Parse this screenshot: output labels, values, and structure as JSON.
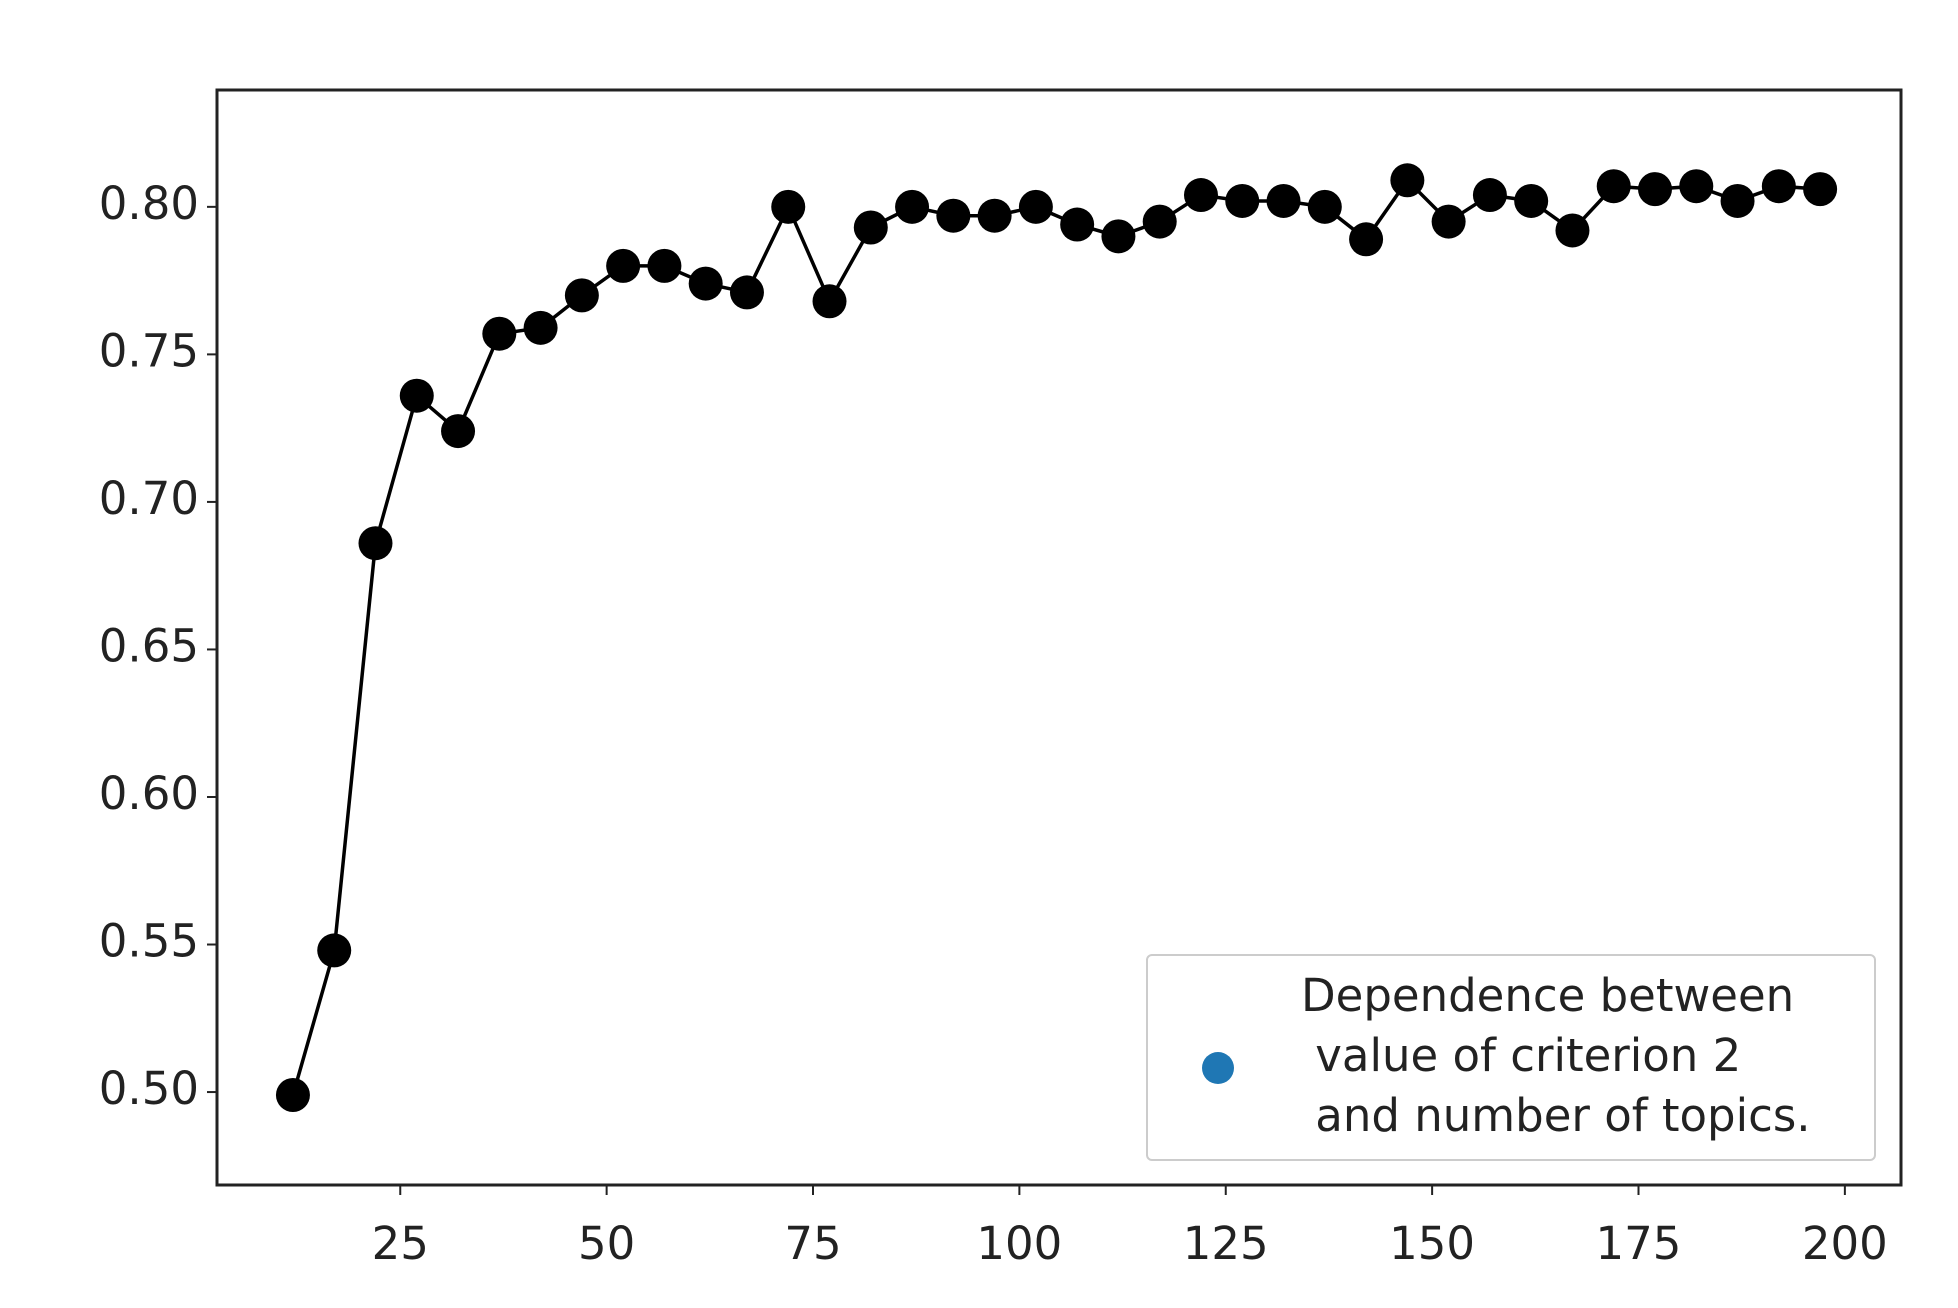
{
  "chart_data": {
    "type": "line",
    "x": [
      12,
      17,
      22,
      27,
      32,
      37,
      42,
      47,
      52,
      57,
      62,
      67,
      72,
      77,
      82,
      87,
      92,
      97,
      102,
      107,
      112,
      117,
      122,
      127,
      132,
      137,
      142,
      147,
      152,
      157,
      162,
      167,
      172,
      177,
      182,
      187,
      192,
      197
    ],
    "series": [
      {
        "name": "Dependence between\n value of criterion 2\n and number of topics.",
        "color": "#000000",
        "legend_marker_color": "#1f77b4",
        "values": [
          0.499,
          0.548,
          0.686,
          0.736,
          0.724,
          0.757,
          0.759,
          0.77,
          0.78,
          0.78,
          0.774,
          0.771,
          0.8,
          0.768,
          0.793,
          0.8,
          0.797,
          0.797,
          0.8,
          0.794,
          0.79,
          0.795,
          0.804,
          0.802,
          0.802,
          0.8,
          0.789,
          0.809,
          0.795,
          0.804,
          0.802,
          0.792,
          0.807,
          0.806,
          0.807,
          0.802,
          0.807,
          0.806
        ]
      }
    ],
    "xlim": [
      2.8,
      206.8
    ],
    "ylim": [
      0.4685,
      0.8396
    ],
    "xticks": [
      25,
      50,
      75,
      100,
      125,
      150,
      175,
      200
    ],
    "yticks": [
      {
        "value": 0.5,
        "label": "0.50"
      },
      {
        "value": 0.55,
        "label": "0.55"
      },
      {
        "value": 0.6,
        "label": "0.60"
      },
      {
        "value": 0.65,
        "label": "0.65"
      },
      {
        "value": 0.7,
        "label": "0.70"
      },
      {
        "value": 0.75,
        "label": "0.75"
      },
      {
        "value": 0.8,
        "label": "0.80"
      }
    ],
    "grid": false,
    "legend_position": "lower right"
  }
}
